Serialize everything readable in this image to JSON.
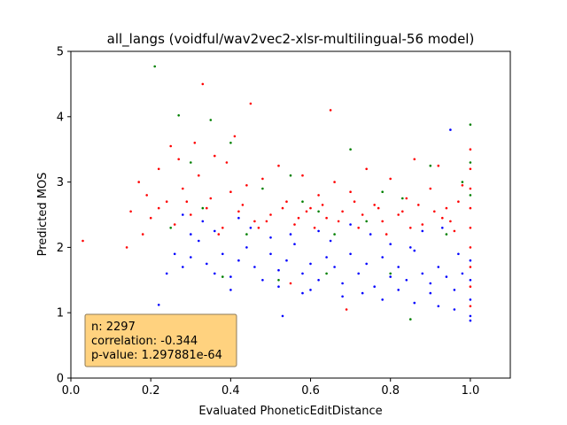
{
  "chart_data": {
    "type": "scatter",
    "title": "all_langs (voidful/wav2vec2-xlsr-multilingual-56 model)",
    "xlabel": "Evaluated PhoneticEditDistance",
    "ylabel": "Predicted MOS",
    "xlim": [
      0.0,
      1.1
    ],
    "ylim": [
      0,
      5
    ],
    "xticks": [
      "0.0",
      "0.2",
      "0.4",
      "0.6",
      "0.8",
      "1.0"
    ],
    "xtick_values": [
      0.0,
      0.2,
      0.4,
      0.6,
      0.8,
      1.0
    ],
    "yticks": [
      "0",
      "1",
      "2",
      "3",
      "4",
      "5"
    ],
    "ytick_values": [
      0,
      1,
      2,
      3,
      4,
      5
    ],
    "grid": false,
    "stats_box": {
      "lines": [
        "n: 2297",
        "correlation: -0.344",
        "p-value: 1.297881e-64"
      ],
      "position": "bottom-left",
      "facecolor": "#ffd27f",
      "edgecolor": "#8c7a5a"
    },
    "series": [
      {
        "color": "#0000ff",
        "points": [
          [
            0.22,
            1.12
          ],
          [
            0.24,
            1.6
          ],
          [
            0.26,
            1.9
          ],
          [
            0.28,
            1.7
          ],
          [
            0.3,
            1.85
          ],
          [
            0.32,
            2.1
          ],
          [
            0.34,
            1.75
          ],
          [
            0.36,
            1.6
          ],
          [
            0.38,
            1.9
          ],
          [
            0.4,
            1.55
          ],
          [
            0.42,
            1.8
          ],
          [
            0.44,
            2.0
          ],
          [
            0.46,
            1.7
          ],
          [
            0.48,
            1.5
          ],
          [
            0.5,
            1.9
          ],
          [
            0.52,
            1.65
          ],
          [
            0.53,
            0.95
          ],
          [
            0.54,
            1.8
          ],
          [
            0.56,
            2.05
          ],
          [
            0.58,
            1.6
          ],
          [
            0.6,
            1.75
          ],
          [
            0.62,
            1.5
          ],
          [
            0.64,
            1.85
          ],
          [
            0.66,
            1.7
          ],
          [
            0.68,
            1.45
          ],
          [
            0.7,
            1.9
          ],
          [
            0.72,
            1.6
          ],
          [
            0.74,
            1.75
          ],
          [
            0.76,
            1.4
          ],
          [
            0.78,
            1.85
          ],
          [
            0.8,
            1.55
          ],
          [
            0.82,
            1.7
          ],
          [
            0.84,
            1.5
          ],
          [
            0.86,
            1.95
          ],
          [
            0.88,
            1.6
          ],
          [
            0.9,
            1.45
          ],
          [
            0.92,
            1.7
          ],
          [
            0.94,
            1.55
          ],
          [
            0.96,
            1.35
          ],
          [
            0.98,
            1.6
          ],
          [
            1.0,
            1.2
          ],
          [
            1.0,
            1.5
          ],
          [
            1.0,
            1.8
          ],
          [
            1.0,
            0.95
          ],
          [
            1.0,
            0.88
          ],
          [
            0.95,
            3.8
          ],
          [
            0.33,
            2.4
          ],
          [
            0.45,
            2.3
          ],
          [
            0.55,
            2.2
          ],
          [
            0.65,
            2.1
          ],
          [
            0.75,
            2.2
          ],
          [
            0.85,
            2.0
          ],
          [
            0.93,
            2.3
          ],
          [
            0.3,
            2.2
          ],
          [
            0.28,
            2.5
          ],
          [
            0.36,
            2.25
          ],
          [
            0.5,
            2.15
          ],
          [
            0.62,
            2.25
          ],
          [
            0.7,
            2.35
          ],
          [
            0.8,
            2.05
          ],
          [
            0.88,
            2.25
          ],
          [
            0.97,
            1.9
          ],
          [
            0.42,
            2.45
          ],
          [
            0.58,
            1.3
          ],
          [
            0.68,
            1.25
          ],
          [
            0.78,
            1.2
          ],
          [
            0.86,
            1.15
          ],
          [
            0.92,
            1.1
          ],
          [
            0.96,
            1.05
          ],
          [
            0.4,
            1.35
          ],
          [
            0.52,
            1.4
          ],
          [
            0.6,
            1.35
          ],
          [
            0.73,
            1.3
          ],
          [
            0.82,
            1.35
          ],
          [
            0.9,
            1.3
          ]
        ]
      },
      {
        "color": "#ff0000",
        "points": [
          [
            0.03,
            2.1
          ],
          [
            0.14,
            2.0
          ],
          [
            0.15,
            2.55
          ],
          [
            0.17,
            3.0
          ],
          [
            0.18,
            2.2
          ],
          [
            0.19,
            2.8
          ],
          [
            0.2,
            2.45
          ],
          [
            0.22,
            3.2
          ],
          [
            0.24,
            2.7
          ],
          [
            0.25,
            3.55
          ],
          [
            0.26,
            2.35
          ],
          [
            0.27,
            3.35
          ],
          [
            0.28,
            2.9
          ],
          [
            0.3,
            2.5
          ],
          [
            0.32,
            3.1
          ],
          [
            0.33,
            4.5
          ],
          [
            0.34,
            2.6
          ],
          [
            0.36,
            3.4
          ],
          [
            0.38,
            2.3
          ],
          [
            0.4,
            2.85
          ],
          [
            0.41,
            3.7
          ],
          [
            0.42,
            2.55
          ],
          [
            0.44,
            2.95
          ],
          [
            0.45,
            4.2
          ],
          [
            0.46,
            2.4
          ],
          [
            0.48,
            3.05
          ],
          [
            0.5,
            2.5
          ],
          [
            0.52,
            3.25
          ],
          [
            0.54,
            2.7
          ],
          [
            0.56,
            2.35
          ],
          [
            0.58,
            3.1
          ],
          [
            0.6,
            2.6
          ],
          [
            0.62,
            2.8
          ],
          [
            0.64,
            2.45
          ],
          [
            0.65,
            4.1
          ],
          [
            0.66,
            3.0
          ],
          [
            0.68,
            2.55
          ],
          [
            0.7,
            2.85
          ],
          [
            0.72,
            2.3
          ],
          [
            0.74,
            3.2
          ],
          [
            0.76,
            2.65
          ],
          [
            0.78,
            2.4
          ],
          [
            0.8,
            3.05
          ],
          [
            0.82,
            2.5
          ],
          [
            0.84,
            2.75
          ],
          [
            0.86,
            3.35
          ],
          [
            0.88,
            2.35
          ],
          [
            0.9,
            2.9
          ],
          [
            0.92,
            3.25
          ],
          [
            0.94,
            2.6
          ],
          [
            0.96,
            2.25
          ],
          [
            0.98,
            2.95
          ],
          [
            1.0,
            3.5
          ],
          [
            1.0,
            3.2
          ],
          [
            1.0,
            2.9
          ],
          [
            1.0,
            2.6
          ],
          [
            1.0,
            2.3
          ],
          [
            1.0,
            2.0
          ],
          [
            1.0,
            1.7
          ],
          [
            1.0,
            1.4
          ],
          [
            1.0,
            1.1
          ],
          [
            0.69,
            1.05
          ],
          [
            0.55,
            1.45
          ],
          [
            0.22,
            2.6
          ],
          [
            0.29,
            2.7
          ],
          [
            0.35,
            2.75
          ],
          [
            0.43,
            2.65
          ],
          [
            0.57,
            2.45
          ],
          [
            0.63,
            2.65
          ],
          [
            0.73,
            2.5
          ],
          [
            0.83,
            2.55
          ],
          [
            0.93,
            2.45
          ],
          [
            0.31,
            3.6
          ],
          [
            0.39,
            3.3
          ],
          [
            0.47,
            2.3
          ],
          [
            0.53,
            2.6
          ],
          [
            0.61,
            2.3
          ],
          [
            0.71,
            2.7
          ],
          [
            0.79,
            2.2
          ],
          [
            0.87,
            2.65
          ],
          [
            0.95,
            2.4
          ],
          [
            0.37,
            2.2
          ],
          [
            0.49,
            2.4
          ],
          [
            0.59,
            2.55
          ],
          [
            0.67,
            2.4
          ],
          [
            0.77,
            2.6
          ],
          [
            0.85,
            2.3
          ],
          [
            0.91,
            2.55
          ],
          [
            0.97,
            2.7
          ]
        ]
      },
      {
        "color": "#008000",
        "points": [
          [
            0.21,
            4.77
          ],
          [
            0.27,
            4.02
          ],
          [
            0.35,
            3.95
          ],
          [
            0.3,
            3.3
          ],
          [
            0.4,
            3.6
          ],
          [
            0.48,
            2.9
          ],
          [
            0.55,
            3.1
          ],
          [
            0.62,
            2.55
          ],
          [
            0.7,
            3.5
          ],
          [
            0.78,
            2.85
          ],
          [
            0.85,
            0.9
          ],
          [
            0.9,
            3.25
          ],
          [
            1.0,
            3.88
          ],
          [
            1.0,
            3.3
          ],
          [
            1.0,
            2.8
          ],
          [
            0.25,
            2.3
          ],
          [
            0.33,
            2.6
          ],
          [
            0.44,
            2.2
          ],
          [
            0.58,
            2.7
          ],
          [
            0.66,
            2.2
          ],
          [
            0.74,
            2.4
          ],
          [
            0.83,
            2.75
          ],
          [
            0.94,
            2.2
          ],
          [
            0.98,
            3.0
          ],
          [
            0.52,
            1.5
          ],
          [
            0.64,
            1.6
          ],
          [
            0.8,
            1.6
          ],
          [
            0.38,
            1.55
          ]
        ]
      }
    ]
  }
}
